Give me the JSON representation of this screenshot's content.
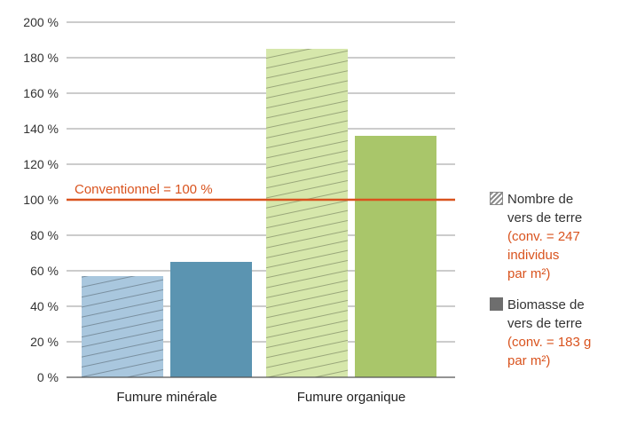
{
  "chart_data": {
    "type": "bar",
    "categories": [
      "Fumure minérale",
      "Fumure organique"
    ],
    "series": [
      {
        "values": [
          57,
          185
        ],
        "colors": [
          "#a9c7de",
          "#d6e7ab"
        ],
        "pattern": "hatched"
      },
      {
        "values": [
          65,
          136
        ],
        "colors": [
          "#5b94b1",
          "#a9c66a"
        ],
        "pattern": "solid"
      }
    ],
    "ylim": [
      0,
      200
    ],
    "yticks": [
      0,
      20,
      40,
      60,
      80,
      100,
      120,
      140,
      160,
      180,
      200
    ],
    "ytick_suffix": " %",
    "grid": true,
    "reference_line": {
      "value": 100,
      "label": "Conventionnel = 100 %",
      "color": "#d9531e"
    },
    "legend_position": "right",
    "legend": [
      {
        "lines": [
          "Nombre de",
          "vers de terre"
        ],
        "note_lines": [
          "(conv. = 247",
          "individus",
          "par m²)"
        ],
        "pattern": "hatched",
        "color": "#8a8a8a"
      },
      {
        "lines": [
          "Biomasse de",
          "vers de terre"
        ],
        "note_lines": [
          "(conv. = 183 g",
          "par m²)"
        ],
        "pattern": "solid",
        "color": "#6e6e6e"
      }
    ]
  }
}
